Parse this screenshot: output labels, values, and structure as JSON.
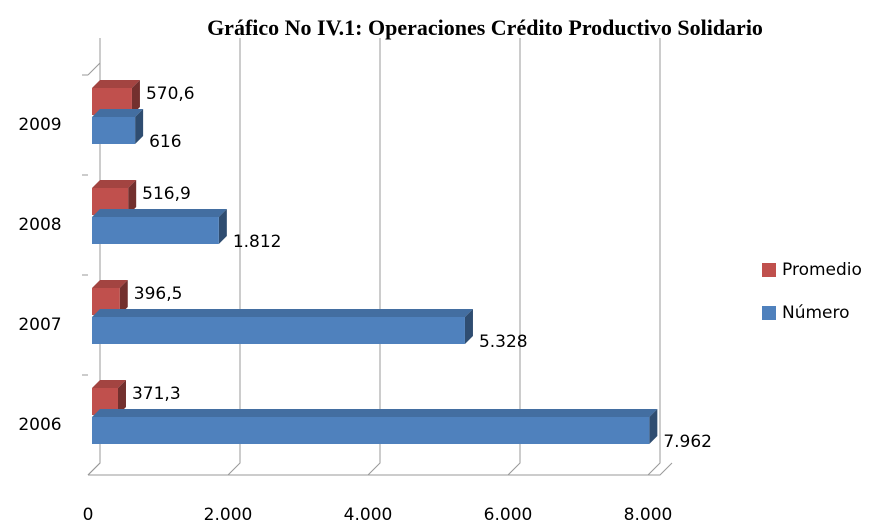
{
  "chart_data": {
    "type": "bar3d_horizontal",
    "title": "Gráfico No IV.1: Operaciones Crédito Productivo Solidario",
    "categories": [
      "2006",
      "2007",
      "2008",
      "2009"
    ],
    "series": [
      {
        "name": "Promedio",
        "color": "#c0504d",
        "values": [
          371.3,
          396.5,
          516.9,
          570.6
        ],
        "value_labels": [
          "371,3",
          "396,5",
          "516,9",
          "570,6"
        ]
      },
      {
        "name": "Número",
        "color": "#4f81bd",
        "values": [
          7962,
          5328,
          1812,
          616
        ],
        "value_labels": [
          "7.962",
          "5.328",
          "1.812",
          "616"
        ]
      }
    ],
    "xlim": [
      0,
      8000
    ],
    "xticks": [
      0,
      {
        "value": 2000,
        "label": "2.000"
      },
      {
        "value": 4000,
        "label": "4.000"
      },
      {
        "value": 6000,
        "label": "6.000"
      },
      {
        "value": 8000,
        "label": "8.000"
      }
    ],
    "grid": true,
    "legend": "right"
  }
}
